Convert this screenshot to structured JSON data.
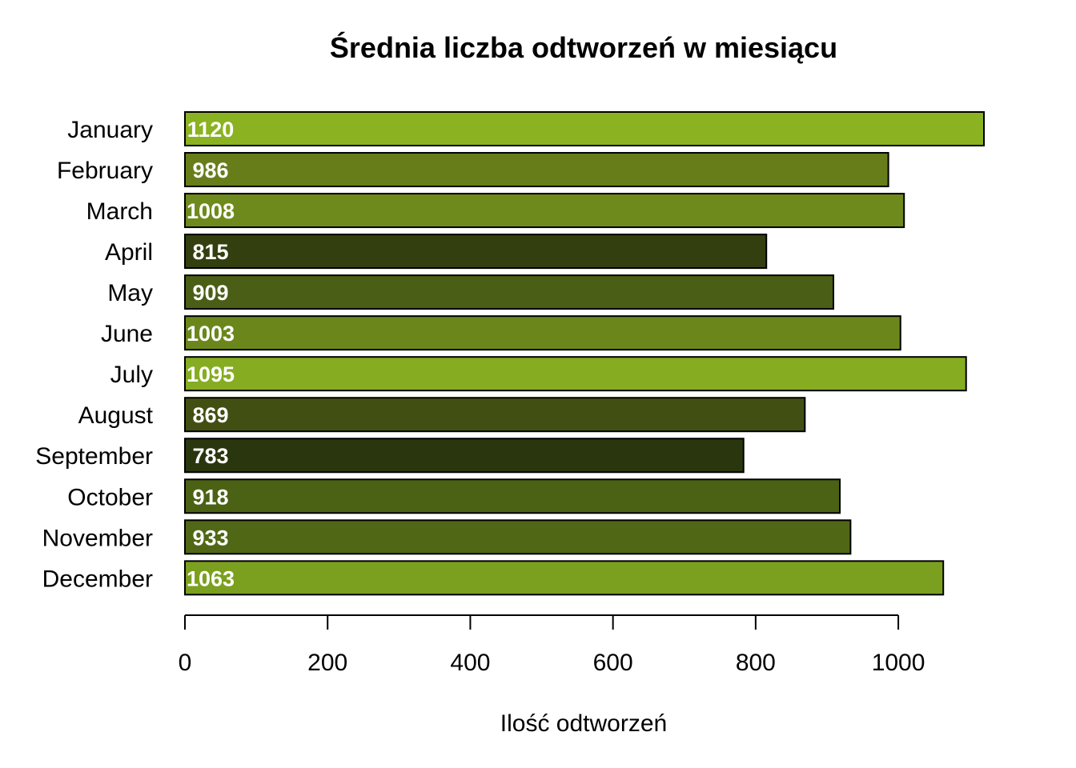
{
  "chart_data": {
    "type": "bar",
    "orientation": "horizontal",
    "title": "Średnia liczba odtworzeń w miesiącu",
    "xlabel": "Ilość odtworzeń",
    "ylabel": "",
    "xlim": [
      0,
      1120
    ],
    "x_ticks": [
      0,
      200,
      400,
      600,
      800,
      1000
    ],
    "categories": [
      "January",
      "February",
      "March",
      "April",
      "May",
      "June",
      "July",
      "August",
      "September",
      "October",
      "November",
      "December"
    ],
    "values": [
      1120,
      986,
      1008,
      815,
      909,
      1003,
      1095,
      869,
      783,
      918,
      933,
      1063
    ],
    "value_labels": [
      "1120",
      "986",
      "1008",
      "815",
      "909",
      "1003",
      "1095",
      "869",
      "783",
      "918",
      "933",
      "1063"
    ],
    "colors": [
      "#8AB221",
      "#667D1A",
      "#6E8A1C",
      "#333F0F",
      "#4A5E15",
      "#6B871B",
      "#86AC22",
      "#414F12",
      "#2A360E",
      "#4B6215",
      "#506716",
      "#7BA01F"
    ],
    "grid": false,
    "legend": "none"
  }
}
